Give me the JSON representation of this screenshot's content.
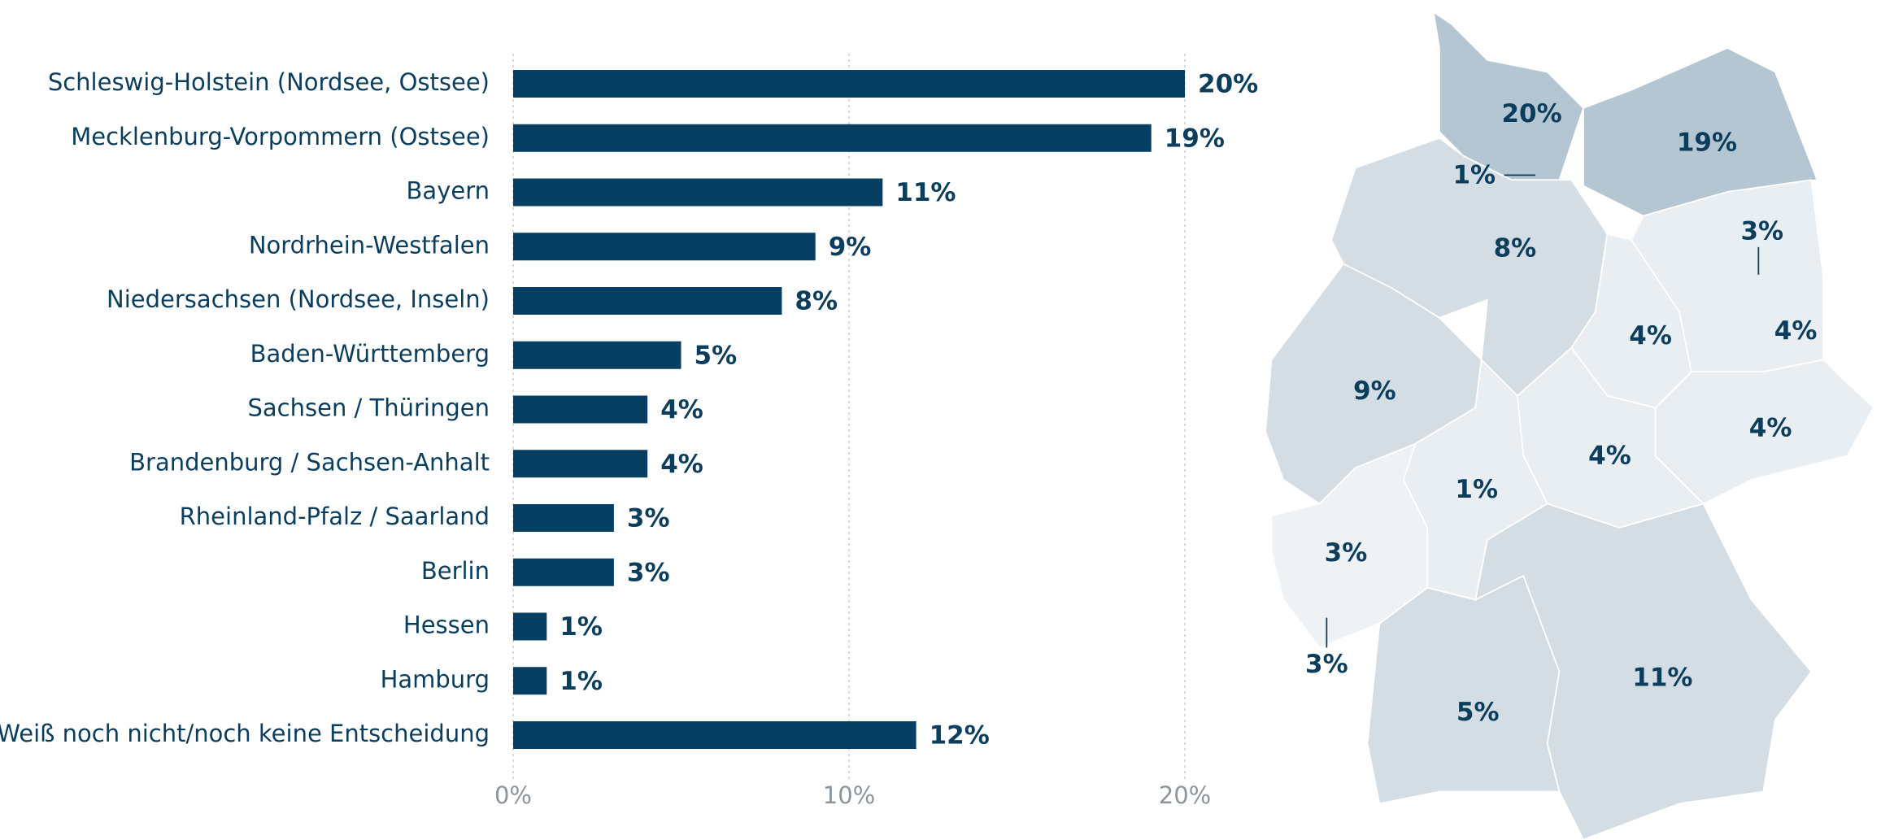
{
  "chart_data": {
    "type": "bar",
    "orientation": "horizontal",
    "categories": [
      "Schleswig-Holstein (Nordsee, Ostsee)",
      "Mecklenburg-Vorpommern (Ostsee)",
      "Bayern",
      "Nordrhein-Westfalen",
      "Niedersachsen (Nordsee, Inseln)",
      "Baden-Württemberg",
      "Sachsen / Thüringen",
      "Brandenburg / Sachsen-Anhalt",
      "Rheinland-Pfalz / Saarland",
      "Berlin",
      "Hessen",
      "Hamburg",
      "Weiß noch nicht/noch keine Entscheidung"
    ],
    "values": [
      20,
      19,
      11,
      9,
      8,
      5,
      4,
      4,
      3,
      3,
      1,
      1,
      12
    ],
    "value_labels": [
      "20%",
      "19%",
      "11%",
      "9%",
      "8%",
      "5%",
      "4%",
      "4%",
      "3%",
      "3%",
      "1%",
      "1%",
      "12%"
    ],
    "color": "#063f61",
    "xlim": [
      0,
      20
    ],
    "xticks": [
      {
        "value": 0,
        "label": "0%"
      },
      {
        "value": 10,
        "label": "10%"
      },
      {
        "value": 20,
        "label": "20%"
      }
    ],
    "grid": true
  }
}
